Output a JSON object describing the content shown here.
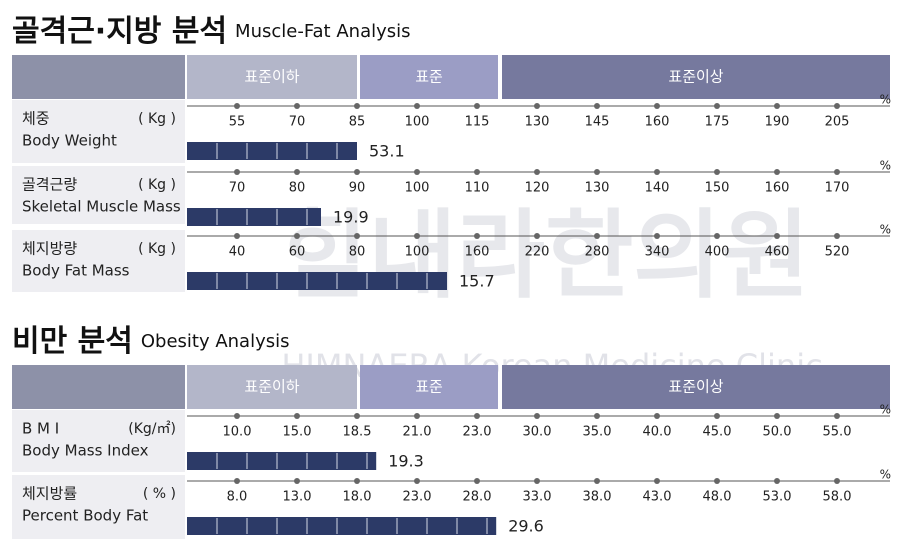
{
  "sections": [
    {
      "title": "골격근·지방 분석",
      "subtitle": "Muscle-Fat Analysis",
      "header": [
        "표준이하",
        "표준",
        "표준이상"
      ],
      "axis_unit": "%",
      "rows": [
        {
          "label_ko": "체중",
          "label_en": "Body Weight",
          "unit": "( Kg )",
          "ticks": [
            55,
            70,
            85,
            100,
            115,
            130,
            145,
            160,
            175,
            190,
            205
          ],
          "value": 53.1,
          "bar_percent": 85
        },
        {
          "label_ko": "골격근량",
          "label_en": "Skeletal Muscle Mass",
          "unit": "( Kg )",
          "ticks": [
            70,
            80,
            90,
            100,
            110,
            120,
            130,
            140,
            150,
            160,
            170
          ],
          "value": 19.9,
          "bar_percent": 84
        },
        {
          "label_ko": "체지방량",
          "label_en": "Body Fat Mass",
          "unit": "( Kg )",
          "ticks": [
            40,
            60,
            80,
            100,
            160,
            220,
            280,
            340,
            400,
            460,
            520
          ],
          "value": 15.7,
          "bar_percent": 130
        }
      ]
    },
    {
      "title": "비만 분석",
      "subtitle": "Obesity Analysis",
      "header": [
        "표준이하",
        "표준",
        "표준이상"
      ],
      "axis_unit": "%",
      "rows": [
        {
          "label_ko": "B M I",
          "label_en": "Body Mass Index",
          "unit": "(Kg/㎡)",
          "ticks": [
            {
              "value": 10,
              "label": "10.0"
            },
            {
              "value": 15,
              "label": "15.0"
            },
            18.5,
            {
              "value": 21,
              "label": "21.0"
            },
            {
              "value": 23,
              "label": "23.0"
            },
            {
              "value": 30,
              "label": "30.0"
            },
            {
              "value": 35,
              "label": "35.0"
            },
            {
              "value": 40,
              "label": "40.0"
            },
            {
              "value": 45,
              "label": "45.0"
            },
            {
              "value": 50,
              "label": "50.0"
            },
            {
              "value": 55,
              "label": "55.0"
            }
          ],
          "value": 19.3
        },
        {
          "label_ko": "체지방률",
          "label_en": "Percent Body Fat",
          "unit": "( % )",
          "ticks": [
            {
              "value": 8,
              "label": "8.0"
            },
            {
              "value": 13,
              "label": "13.0"
            },
            {
              "value": 18,
              "label": "18.0"
            },
            {
              "value": 23,
              "label": "23.0"
            },
            {
              "value": 28,
              "label": "28.0"
            },
            {
              "value": 33,
              "label": "33.0"
            },
            {
              "value": 38,
              "label": "38.0"
            },
            {
              "value": 43,
              "label": "43.0"
            },
            {
              "value": 48,
              "label": "48.0"
            },
            {
              "value": 53,
              "label": "53.0"
            },
            {
              "value": 58,
              "label": "58.0"
            }
          ],
          "value": 29.6
        }
      ]
    }
  ],
  "watermark": {
    "name": "힘내라한의원",
    "name_en": "HIMNAERA Korean Medicine Clinic"
  }
}
